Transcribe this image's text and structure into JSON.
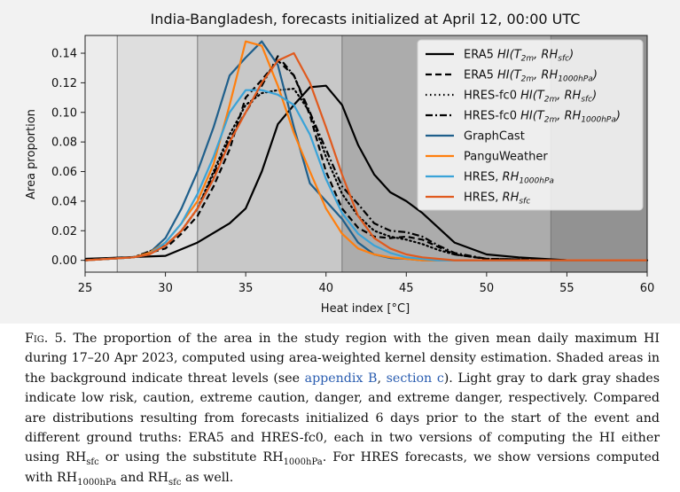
{
  "chart_data": {
    "type": "line",
    "title": "India-Bangladesh, forecasts initialized at April 12, 00:00 UTC",
    "xlabel": "Heat index [°C]",
    "ylabel": "Area proportion",
    "xlim": [
      25,
      60
    ],
    "ylim": [
      -0.008,
      0.152
    ],
    "xticks": [
      25,
      30,
      35,
      40,
      45,
      50,
      55,
      60
    ],
    "xtick_labels": [
      "25",
      "30",
      "35",
      "40",
      "45",
      "50",
      "55",
      "60"
    ],
    "yticks": [
      0.0,
      0.02,
      0.04,
      0.06,
      0.08,
      0.1,
      0.12,
      0.14
    ],
    "ytick_labels": [
      "0.00",
      "0.02",
      "0.04",
      "0.06",
      "0.08",
      "0.10",
      "0.12",
      "0.14"
    ],
    "grid": false,
    "legend_position": "top-right",
    "threat_bands": [
      {
        "from": 25,
        "to": 27,
        "color": "#ececec"
      },
      {
        "from": 27,
        "to": 32,
        "color": "#dedede"
      },
      {
        "from": 32,
        "to": 41,
        "color": "#c8c8c8"
      },
      {
        "from": 41,
        "to": 54,
        "color": "#acacac"
      },
      {
        "from": 54,
        "to": 60,
        "color": "#929292"
      }
    ],
    "threat_boundaries": [
      27,
      32,
      41,
      54
    ],
    "series": [
      {
        "name": "ERA5 HI(T2m, RHsfc)",
        "legend_label": {
          "prefix": "ERA5 ",
          "hi": "HI",
          "args": [
            "T",
            "2m",
            ", RH",
            "sfc"
          ]
        },
        "color": "#000000",
        "dash": "solid",
        "x": [
          25,
          30,
          32,
          34,
          35,
          36,
          37,
          38,
          39,
          40,
          41,
          42,
          43,
          44,
          45,
          46,
          47,
          48,
          50,
          52,
          55,
          60
        ],
        "y": [
          0.001,
          0.003,
          0.012,
          0.025,
          0.035,
          0.06,
          0.092,
          0.105,
          0.117,
          0.118,
          0.105,
          0.078,
          0.058,
          0.046,
          0.04,
          0.032,
          0.022,
          0.012,
          0.004,
          0.002,
          0.0,
          0.0
        ]
      },
      {
        "name": "ERA5 HI(T2m, RH1000hPa)",
        "legend_label": {
          "prefix": "ERA5 ",
          "hi": "HI",
          "args": [
            "T",
            "2m",
            ", RH",
            "1000hPa"
          ]
        },
        "color": "#000000",
        "dash": "dashed",
        "x": [
          25,
          28,
          30,
          31,
          32,
          33,
          34,
          35,
          36,
          37,
          38,
          39,
          40,
          41,
          42,
          43,
          44,
          45,
          46,
          47,
          48,
          50,
          55,
          60
        ],
        "y": [
          0.0,
          0.002,
          0.008,
          0.018,
          0.03,
          0.05,
          0.075,
          0.11,
          0.122,
          0.135,
          0.125,
          0.098,
          0.06,
          0.035,
          0.022,
          0.016,
          0.015,
          0.016,
          0.014,
          0.009,
          0.004,
          0.001,
          0.0,
          0.0
        ]
      },
      {
        "name": "HRES-fc0 HI(T2m, RHsfc)",
        "legend_label": {
          "prefix": "HRES-fc0 ",
          "hi": "HI",
          "args": [
            "T",
            "2m",
            ", RH",
            "sfc"
          ]
        },
        "color": "#000000",
        "dash": "dotted",
        "x": [
          25,
          28,
          30,
          31,
          32,
          33,
          34,
          35,
          36,
          37,
          38,
          39,
          40,
          41,
          42,
          43,
          44,
          45,
          46,
          47,
          48,
          50,
          55,
          60
        ],
        "y": [
          0.0,
          0.002,
          0.01,
          0.02,
          0.035,
          0.06,
          0.085,
          0.105,
          0.113,
          0.115,
          0.116,
          0.1,
          0.07,
          0.045,
          0.03,
          0.02,
          0.016,
          0.014,
          0.011,
          0.007,
          0.004,
          0.001,
          0.0,
          0.0
        ]
      },
      {
        "name": "HRES-fc0 HI(T2m, RH1000hPa)",
        "legend_label": {
          "prefix": "HRES-fc0 ",
          "hi": "HI",
          "args": [
            "T",
            "2m",
            ", RH",
            "1000hPa"
          ]
        },
        "color": "#000000",
        "dash": "dashdot",
        "x": [
          25,
          28,
          30,
          31,
          32,
          33,
          34,
          35,
          36,
          37,
          38,
          39,
          40,
          41,
          42,
          43,
          44,
          45,
          46,
          47,
          48,
          50,
          55,
          60
        ],
        "y": [
          0.0,
          0.002,
          0.01,
          0.02,
          0.035,
          0.058,
          0.082,
          0.1,
          0.118,
          0.138,
          0.125,
          0.1,
          0.075,
          0.05,
          0.038,
          0.025,
          0.02,
          0.019,
          0.016,
          0.01,
          0.005,
          0.001,
          0.0,
          0.0
        ]
      },
      {
        "name": "GraphCast",
        "legend_label": {
          "prefix": "GraphCast"
        },
        "color": "#1f5f8b",
        "dash": "solid",
        "x": [
          25,
          28,
          29,
          30,
          31,
          32,
          33,
          34,
          35,
          36,
          37,
          38,
          39,
          40,
          41,
          42,
          43,
          44,
          45,
          46,
          50,
          60
        ],
        "y": [
          0.0,
          0.002,
          0.005,
          0.015,
          0.035,
          0.06,
          0.09,
          0.125,
          0.137,
          0.148,
          0.132,
          0.09,
          0.052,
          0.04,
          0.028,
          0.012,
          0.004,
          0.0015,
          0.001,
          0.0,
          0.0,
          0.0
        ]
      },
      {
        "name": "PanguWeather",
        "legend_label": {
          "prefix": "PanguWeather"
        },
        "color": "#ff7f0e",
        "dash": "solid",
        "x": [
          25,
          28,
          29,
          30,
          31,
          32,
          33,
          34,
          35,
          36,
          37,
          38,
          39,
          40,
          41,
          42,
          43,
          44,
          45,
          46,
          50,
          60
        ],
        "y": [
          0.0,
          0.002,
          0.005,
          0.012,
          0.025,
          0.04,
          0.065,
          0.105,
          0.148,
          0.145,
          0.118,
          0.086,
          0.06,
          0.035,
          0.018,
          0.008,
          0.004,
          0.002,
          0.001,
          0.0,
          0.0,
          0.0
        ]
      },
      {
        "name": "HRES, RH1000hPa",
        "legend_label": {
          "prefix": "HRES, ",
          "args": [
            "RH",
            "1000hPa"
          ]
        },
        "color": "#3aa3d8",
        "dash": "solid",
        "x": [
          25,
          28,
          29,
          30,
          31,
          32,
          33,
          34,
          35,
          36,
          37,
          38,
          39,
          40,
          41,
          42,
          43,
          44,
          45,
          46,
          47,
          50,
          60
        ],
        "y": [
          0.0,
          0.002,
          0.004,
          0.012,
          0.025,
          0.045,
          0.07,
          0.1,
          0.115,
          0.115,
          0.112,
          0.105,
          0.085,
          0.055,
          0.032,
          0.018,
          0.01,
          0.005,
          0.002,
          0.001,
          0.0,
          0.0,
          0.0
        ]
      },
      {
        "name": "HRES, RHsfc",
        "legend_label": {
          "prefix": "HRES, ",
          "args": [
            "RH",
            "sfc"
          ]
        },
        "color": "#e05a1e",
        "dash": "solid",
        "x": [
          25,
          28,
          29,
          30,
          31,
          32,
          33,
          34,
          35,
          36,
          37,
          38,
          39,
          40,
          41,
          42,
          43,
          44,
          45,
          46,
          47,
          48,
          50,
          60
        ],
        "y": [
          0.0,
          0.002,
          0.004,
          0.01,
          0.02,
          0.035,
          0.055,
          0.08,
          0.1,
          0.12,
          0.135,
          0.14,
          0.12,
          0.09,
          0.058,
          0.03,
          0.015,
          0.008,
          0.004,
          0.002,
          0.001,
          0.0,
          0.0,
          0.0
        ]
      }
    ]
  },
  "caption": {
    "fig_label": "Fig. 5.",
    "text_1": " The proportion of the area in the study region with the given mean daily maximum HI during 17–20 Apr 2023, computed using area-weighted kernel density estimation. Shaded areas in the background indicate threat levels (see ",
    "link_1": "appendix B",
    "text_2": ", ",
    "link_2": "section c",
    "text_3": "). Light gray to dark gray shades indicate low risk, caution, extreme caution, danger, and extreme danger, respectively. Compared are distributions resulting from forecasts initialized 6 days prior to the start of the event and different ground truths: ERA5 and HRES-fc0, each in two versions of computing the HI either using RH",
    "sub_1": "sfc",
    "text_4": " or using the substitute RH",
    "sub_2": "1000hPa",
    "text_5": ". For HRES forecasts, we show versions computed with RH",
    "sub_3": "1000hPa",
    "text_6": " and RH",
    "sub_4": "sfc",
    "text_7": " as well."
  }
}
